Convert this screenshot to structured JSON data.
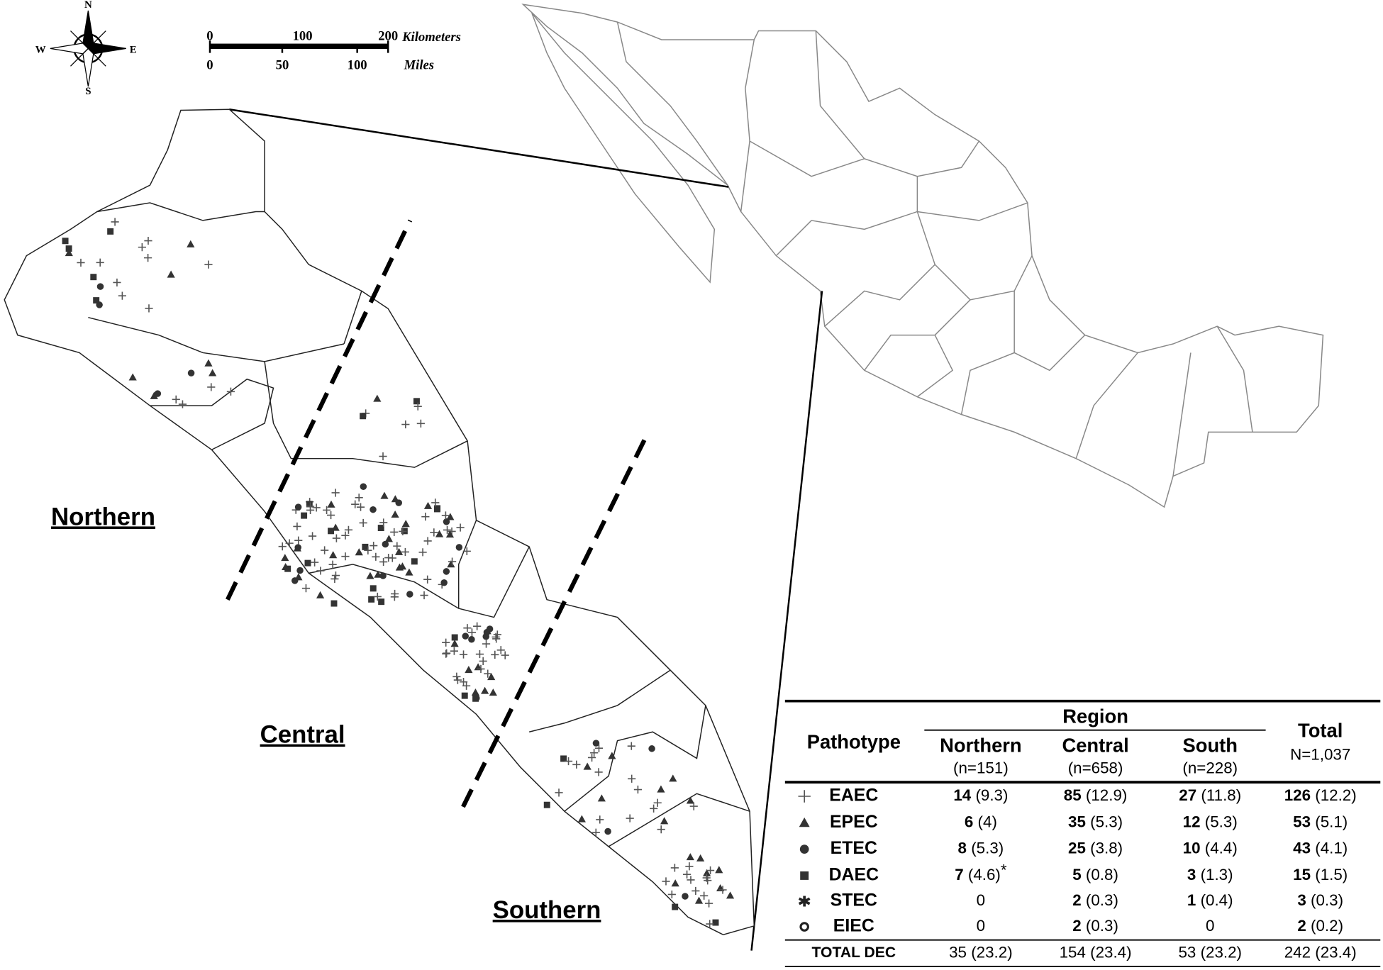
{
  "compass": {
    "n": "N",
    "s": "S",
    "e": "E",
    "w": "W"
  },
  "scale": {
    "km_ticks": [
      "0",
      "100",
      "200"
    ],
    "km_unit": "Kilometers",
    "mi_ticks": [
      "0",
      "50",
      "100"
    ],
    "mi_unit": "Miles"
  },
  "regions": [
    "Northern",
    "Central",
    "Southern"
  ],
  "table": {
    "pathotype_header": "Pathotype",
    "region_header": "Region",
    "columns": [
      {
        "name": "Northern",
        "n": "(n=151)"
      },
      {
        "name": "Central",
        "n": "(n=658)"
      },
      {
        "name": "South",
        "n": "(n=228)"
      }
    ],
    "total_header": "Total",
    "total_n": "N=1,037",
    "rows": [
      {
        "name": "EAEC",
        "cells": [
          {
            "count": "14",
            "pct": "(9.3)"
          },
          {
            "count": "85",
            "pct": "(12.9)"
          },
          {
            "count": "27",
            "pct": "(11.8)"
          },
          {
            "count": "126",
            "pct": "(12.2)"
          }
        ]
      },
      {
        "name": "EPEC",
        "cells": [
          {
            "count": "6",
            "pct": "(4)"
          },
          {
            "count": "35",
            "pct": "(5.3)"
          },
          {
            "count": "12",
            "pct": "(5.3)"
          },
          {
            "count": "53",
            "pct": "(5.1)"
          }
        ]
      },
      {
        "name": "ETEC",
        "cells": [
          {
            "count": "8",
            "pct": "(5.3)"
          },
          {
            "count": "25",
            "pct": "(3.8)"
          },
          {
            "count": "10",
            "pct": "(4.4)"
          },
          {
            "count": "43",
            "pct": "(4.1)"
          }
        ]
      },
      {
        "name": "DAEC",
        "cells": [
          {
            "count": "7",
            "pct": "(4.6)",
            "note": "*"
          },
          {
            "count": "5",
            "pct": "(0.8)"
          },
          {
            "count": "3",
            "pct": "(1.3)"
          },
          {
            "count": "15",
            "pct": "(1.5)"
          }
        ]
      },
      {
        "name": "STEC",
        "cells": [
          {
            "count": "0"
          },
          {
            "count": "2",
            "pct": "(0.3)"
          },
          {
            "count": "1",
            "pct": "(0.4)"
          },
          {
            "count": "3",
            "pct": "(0.3)"
          }
        ]
      },
      {
        "name": "EIEC",
        "cells": [
          {
            "count": "0"
          },
          {
            "count": "2",
            "pct": "(0.3)"
          },
          {
            "count": "0"
          },
          {
            "count": "2",
            "pct": "(0.2)"
          }
        ]
      }
    ],
    "total_row": {
      "name": "TOTAL DEC",
      "cells": [
        "35 (23.2)",
        "154 (23.4)",
        "53 (23.2)",
        "242 (23.4)"
      ]
    }
  }
}
